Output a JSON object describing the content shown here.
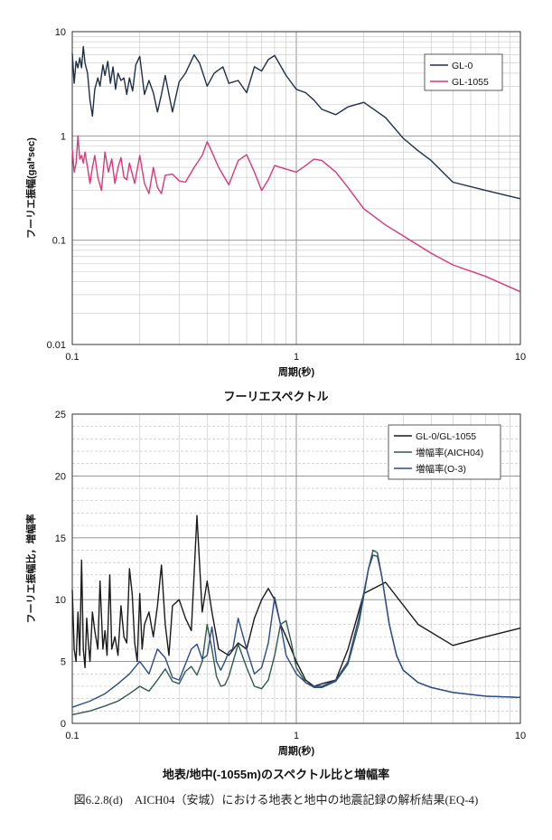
{
  "caption": "図6.2.8(d)　AICH04（安城）における地表と地中の地震記録の解析結果(EQ-4)",
  "chart_data": [
    {
      "type": "line",
      "title": "フーリエスペクトル",
      "xlabel": "周期(秒)",
      "ylabel": "フーリエ振幅(gal*sec)",
      "xscale": "log",
      "yscale": "log",
      "xlim": [
        0.1,
        10
      ],
      "ylim": [
        0.01,
        10
      ],
      "xticks": [
        {
          "v": 0.1,
          "label": "0.1"
        },
        {
          "v": 1,
          "label": "1"
        },
        {
          "v": 10,
          "label": "10"
        }
      ],
      "yticks": [
        {
          "v": 10,
          "label": "10"
        },
        {
          "v": 1,
          "label": "1"
        },
        {
          "v": 0.1,
          "label": "0.1"
        },
        {
          "v": 0.01,
          "label": "0.01"
        }
      ],
      "grid": true,
      "legend": "top-right",
      "series": [
        {
          "name": "GL-0",
          "color": "#1f2f4a",
          "x": [
            0.1,
            0.102,
            0.104,
            0.106,
            0.108,
            0.11,
            0.112,
            0.114,
            0.117,
            0.12,
            0.123,
            0.126,
            0.13,
            0.133,
            0.137,
            0.14,
            0.144,
            0.148,
            0.152,
            0.156,
            0.16,
            0.165,
            0.17,
            0.175,
            0.18,
            0.186,
            0.192,
            0.2,
            0.21,
            0.22,
            0.23,
            0.24,
            0.25,
            0.26,
            0.27,
            0.28,
            0.3,
            0.32,
            0.35,
            0.37,
            0.4,
            0.43,
            0.47,
            0.5,
            0.55,
            0.6,
            0.65,
            0.7,
            0.75,
            0.8,
            0.9,
            1.0,
            1.1,
            1.2,
            1.3,
            1.5,
            1.7,
            2.0,
            2.5,
            3.0,
            3.5,
            4.0,
            5.0,
            7.0,
            10.0
          ],
          "y": [
            6.2,
            3.2,
            5.2,
            4.5,
            5.6,
            4.5,
            7.2,
            5.0,
            4.0,
            2.2,
            1.55,
            2.8,
            3.6,
            3.0,
            4.8,
            3.8,
            5.2,
            3.2,
            4.6,
            2.8,
            4.0,
            3.4,
            3.6,
            2.5,
            3.6,
            2.7,
            4.8,
            5.8,
            2.5,
            3.4,
            2.6,
            1.7,
            2.5,
            3.8,
            2.5,
            1.7,
            3.3,
            4.0,
            6.0,
            5.0,
            3.0,
            4.0,
            4.6,
            3.2,
            3.4,
            2.6,
            4.6,
            4.2,
            5.4,
            5.9,
            3.8,
            2.8,
            2.6,
            2.2,
            1.8,
            1.6,
            1.9,
            2.1,
            1.5,
            0.95,
            0.72,
            0.58,
            0.36,
            0.3,
            0.25
          ]
        },
        {
          "name": "GL-1055",
          "color": "#d8397a",
          "x": [
            0.1,
            0.102,
            0.104,
            0.106,
            0.108,
            0.11,
            0.112,
            0.114,
            0.117,
            0.12,
            0.123,
            0.126,
            0.13,
            0.135,
            0.14,
            0.145,
            0.15,
            0.155,
            0.16,
            0.165,
            0.17,
            0.175,
            0.18,
            0.19,
            0.2,
            0.21,
            0.22,
            0.23,
            0.24,
            0.25,
            0.26,
            0.28,
            0.3,
            0.32,
            0.35,
            0.38,
            0.4,
            0.42,
            0.45,
            0.5,
            0.55,
            0.6,
            0.65,
            0.7,
            0.75,
            0.8,
            0.9,
            1.0,
            1.1,
            1.2,
            1.3,
            1.5,
            1.7,
            2.0,
            2.5,
            3.0,
            4.0,
            5.0,
            7.0,
            10.0
          ],
          "y": [
            0.75,
            0.45,
            0.55,
            1.0,
            0.6,
            0.65,
            0.55,
            0.7,
            0.5,
            0.35,
            0.5,
            0.65,
            0.4,
            0.3,
            0.7,
            0.45,
            0.6,
            0.35,
            0.5,
            0.62,
            0.4,
            0.38,
            0.55,
            0.35,
            0.65,
            0.35,
            0.28,
            0.5,
            0.32,
            0.28,
            0.42,
            0.43,
            0.37,
            0.36,
            0.5,
            0.65,
            0.88,
            0.7,
            0.5,
            0.34,
            0.58,
            0.66,
            0.45,
            0.3,
            0.38,
            0.52,
            0.48,
            0.45,
            0.52,
            0.6,
            0.58,
            0.45,
            0.32,
            0.2,
            0.14,
            0.11,
            0.075,
            0.058,
            0.045,
            0.032
          ]
        }
      ]
    },
    {
      "type": "line",
      "title": "地表/地中(-1055m)のスペクトル比と増幅率",
      "xlabel": "周期(秒)",
      "ylabel": "フーリエ振幅比，増幅率",
      "xscale": "log",
      "yscale": "linear",
      "xlim": [
        0.1,
        10
      ],
      "ylim": [
        0,
        25
      ],
      "xticks": [
        {
          "v": 0.1,
          "label": "0.1"
        },
        {
          "v": 1,
          "label": "1"
        },
        {
          "v": 10,
          "label": "10"
        }
      ],
      "yticks": [
        {
          "v": 25,
          "label": "25"
        },
        {
          "v": 20,
          "label": "20"
        },
        {
          "v": 15,
          "label": "15"
        },
        {
          "v": 10,
          "label": "10"
        },
        {
          "v": 5,
          "label": "5"
        },
        {
          "v": 0,
          "label": "0"
        }
      ],
      "grid": true,
      "legend": "top-right",
      "series": [
        {
          "name": "GL-0/GL-1055",
          "color": "#1a1a1a",
          "x": [
            0.1,
            0.102,
            0.104,
            0.106,
            0.108,
            0.11,
            0.112,
            0.114,
            0.116,
            0.118,
            0.12,
            0.123,
            0.126,
            0.13,
            0.133,
            0.137,
            0.14,
            0.143,
            0.147,
            0.15,
            0.155,
            0.16,
            0.165,
            0.17,
            0.175,
            0.18,
            0.185,
            0.19,
            0.195,
            0.2,
            0.205,
            0.21,
            0.22,
            0.23,
            0.24,
            0.25,
            0.26,
            0.27,
            0.28,
            0.3,
            0.32,
            0.34,
            0.36,
            0.38,
            0.4,
            0.42,
            0.45,
            0.5,
            0.55,
            0.6,
            0.65,
            0.7,
            0.75,
            0.8,
            0.85,
            0.9,
            1.0,
            1.1,
            1.2,
            1.3,
            1.5,
            1.7,
            2.0,
            2.5,
            3.5,
            5.0,
            7.0,
            10.0
          ],
          "y": [
            10.8,
            6.0,
            5.0,
            9.0,
            5.5,
            13.2,
            6.0,
            4.5,
            8.5,
            6.5,
            5.0,
            9.0,
            7.5,
            6.0,
            11.5,
            6.0,
            7.5,
            5.5,
            12.0,
            6.0,
            7.0,
            5.5,
            9.5,
            7.0,
            6.5,
            12.5,
            10.5,
            6.5,
            5.0,
            10.5,
            6.0,
            8.0,
            9.0,
            7.0,
            9.5,
            12.8,
            8.0,
            5.5,
            9.5,
            10.0,
            8.5,
            7.5,
            16.8,
            9.0,
            11.5,
            9.0,
            6.0,
            5.5,
            6.5,
            6.0,
            8.5,
            10.0,
            10.9,
            10.0,
            8.0,
            7.0,
            5.0,
            3.5,
            3.0,
            3.2,
            3.5,
            6.0,
            10.5,
            11.4,
            8.0,
            6.3,
            7.0,
            7.7
          ]
        },
        {
          "name": "増幅率(AICH04)",
          "color": "#2e5b4a",
          "x": [
            0.1,
            0.12,
            0.14,
            0.16,
            0.18,
            0.2,
            0.22,
            0.24,
            0.26,
            0.28,
            0.3,
            0.32,
            0.34,
            0.36,
            0.38,
            0.4,
            0.42,
            0.44,
            0.46,
            0.48,
            0.5,
            0.55,
            0.6,
            0.65,
            0.7,
            0.75,
            0.8,
            0.85,
            0.9,
            0.95,
            1.0,
            1.1,
            1.2,
            1.3,
            1.5,
            1.7,
            1.9,
            2.1,
            2.2,
            2.3,
            2.4,
            2.6,
            2.8,
            3.0,
            3.5,
            4.0,
            5.0,
            7.0,
            10.0
          ],
          "y": [
            0.7,
            1.0,
            1.4,
            1.8,
            2.4,
            3.0,
            2.6,
            3.5,
            4.4,
            3.4,
            3.2,
            4.2,
            4.6,
            3.9,
            5.0,
            8.0,
            6.0,
            3.8,
            3.0,
            3.1,
            3.8,
            6.4,
            4.5,
            3.0,
            2.8,
            3.5,
            5.5,
            8.0,
            8.3,
            6.5,
            4.5,
            3.3,
            2.9,
            2.9,
            3.4,
            4.8,
            8.0,
            12.5,
            14.0,
            13.8,
            12.0,
            8.0,
            5.5,
            4.3,
            3.3,
            2.9,
            2.5,
            2.2,
            2.1
          ]
        },
        {
          "name": "増幅率(O-3)",
          "color": "#2c4a8a",
          "x": [
            0.1,
            0.12,
            0.14,
            0.16,
            0.18,
            0.2,
            0.22,
            0.24,
            0.26,
            0.28,
            0.3,
            0.32,
            0.34,
            0.36,
            0.38,
            0.4,
            0.42,
            0.44,
            0.46,
            0.48,
            0.5,
            0.52,
            0.55,
            0.6,
            0.65,
            0.7,
            0.75,
            0.8,
            0.85,
            0.9,
            1.0,
            1.1,
            1.2,
            1.3,
            1.5,
            1.7,
            1.9,
            2.1,
            2.2,
            2.3,
            2.4,
            2.6,
            2.8,
            3.0,
            3.5,
            4.0,
            5.0,
            7.0,
            10.0
          ],
          "y": [
            1.3,
            1.8,
            2.4,
            3.2,
            4.0,
            5.0,
            4.0,
            6.0,
            5.3,
            3.7,
            3.5,
            4.8,
            6.0,
            6.4,
            5.2,
            5.5,
            7.8,
            5.0,
            4.3,
            5.0,
            5.8,
            6.0,
            8.5,
            6.0,
            4.0,
            4.5,
            6.5,
            10.2,
            8.0,
            5.5,
            4.0,
            3.3,
            3.0,
            3.0,
            3.5,
            5.0,
            8.5,
            12.5,
            13.6,
            13.5,
            12.0,
            8.0,
            5.5,
            4.3,
            3.3,
            2.9,
            2.5,
            2.2,
            2.1
          ]
        }
      ]
    }
  ]
}
